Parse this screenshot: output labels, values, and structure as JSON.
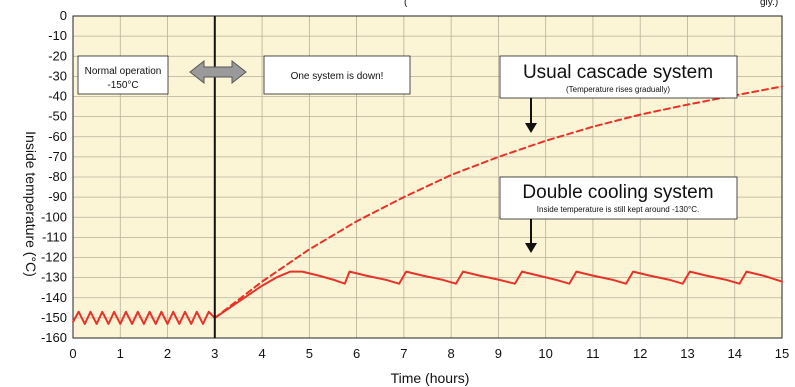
{
  "chart_data": {
    "type": "line",
    "xlabel": "Time (hours)",
    "ylabel": "Inside temperature (°C)",
    "xlim": [
      0,
      15
    ],
    "ylim": [
      -160,
      0
    ],
    "x_ticks": [
      0,
      1,
      2,
      3,
      4,
      5,
      6,
      7,
      8,
      9,
      10,
      11,
      12,
      13,
      14,
      15
    ],
    "y_ticks": [
      0,
      -10,
      -20,
      -30,
      -40,
      -50,
      -60,
      -70,
      -80,
      -90,
      -100,
      -110,
      -120,
      -130,
      -140,
      -150,
      -160
    ],
    "grid": true,
    "background": "#fbf5d6",
    "grid_color": "#b8b09a",
    "series": [
      {
        "style": "solid",
        "color": "#e8332a",
        "x": [
          0,
          0.12,
          0.25,
          0.37,
          0.5,
          0.62,
          0.75,
          0.87,
          1.0,
          1.12,
          1.25,
          1.37,
          1.5,
          1.62,
          1.75,
          1.87,
          2.0,
          2.12,
          2.25,
          2.37,
          2.5,
          2.62,
          2.75,
          2.87,
          3.0,
          3.5,
          4.0,
          4.3,
          4.6,
          4.85,
          5.2,
          5.5,
          5.75,
          5.85,
          6.2,
          6.6,
          6.9,
          7.05,
          7.4,
          7.8,
          8.1,
          8.25,
          8.6,
          9.0,
          9.35,
          9.5,
          9.85,
          10.2,
          10.5,
          10.65,
          11.0,
          11.4,
          11.7,
          11.85,
          12.2,
          12.6,
          12.9,
          13.05,
          13.4,
          13.8,
          14.1,
          14.25,
          14.6,
          15.0
        ],
        "y": [
          -152,
          -147,
          -153,
          -147,
          -153,
          -147,
          -153,
          -147,
          -153,
          -147,
          -153,
          -147,
          -153,
          -147,
          -153,
          -147,
          -153,
          -147,
          -153,
          -147,
          -153,
          -147,
          -153,
          -147,
          -150,
          -142,
          -134,
          -130,
          -127,
          -127,
          -129,
          -131,
          -133,
          -127,
          -129,
          -131,
          -133,
          -127,
          -129,
          -131,
          -133,
          -127,
          -129,
          -131,
          -133,
          -127,
          -129,
          -131,
          -133,
          -127,
          -129,
          -131,
          -133,
          -127,
          -129,
          -131,
          -133,
          -127,
          -129,
          -131,
          -133,
          -127,
          -129,
          -132
        ]
      },
      {
        "style": "dashed",
        "color": "#e8332a",
        "x": [
          3.0,
          4.0,
          5.0,
          6.0,
          7.0,
          8.0,
          9.0,
          10.0,
          11.0,
          12.0,
          13.0,
          14.0,
          15.0
        ],
        "y": [
          -150,
          -132,
          -116,
          -102,
          -90,
          -79,
          -70,
          -62,
          -55,
          -49,
          -44,
          -39.5,
          -35
        ]
      }
    ],
    "event_line_x": 3,
    "annotations": {
      "header_fragment": "(",
      "header_tail": "gly.)",
      "normal_operation": [
        "Normal operation",
        "-150°C"
      ],
      "system_down": "One system is down!",
      "usual_title": "Usual cascade system",
      "usual_note": "(Temperature rises gradually)",
      "double_title": "Double cooling system",
      "double_note": "Inside temperature is still kept around -130°C."
    }
  }
}
